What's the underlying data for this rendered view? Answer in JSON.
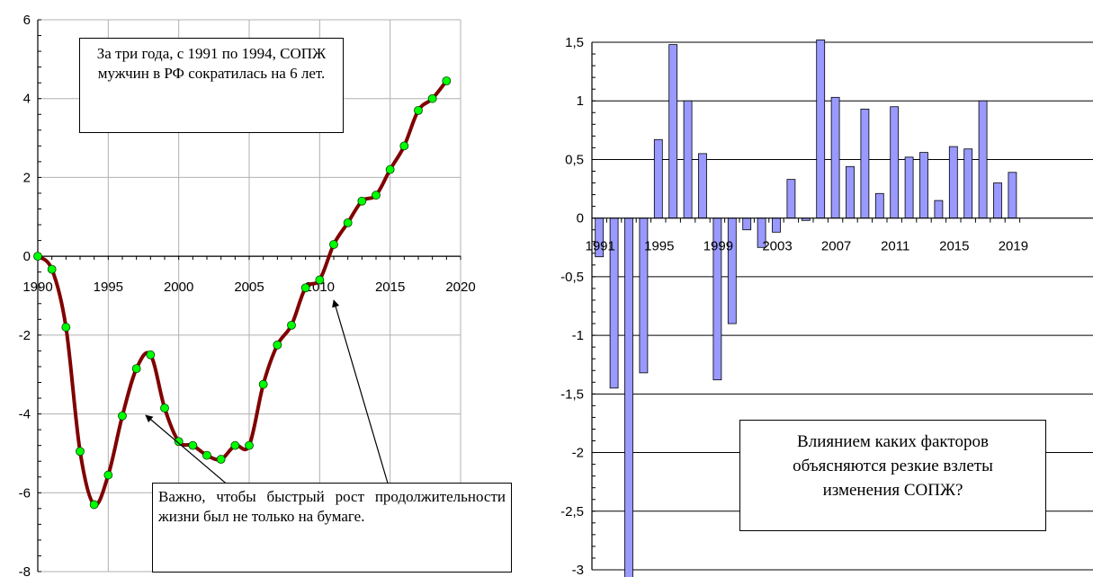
{
  "chart_data": [
    {
      "type": "line",
      "xlim": [
        1990,
        2020
      ],
      "ylim": [
        -8,
        6
      ],
      "x_ticks": [
        1990,
        1995,
        2000,
        2005,
        2010,
        2015,
        2020
      ],
      "x_tick_labels": [
        "1990",
        "1995",
        "2000",
        "2005",
        "2010",
        "2015",
        "2020"
      ],
      "y_ticks": [
        -8,
        -6,
        -4,
        -2,
        0,
        2,
        4,
        6
      ],
      "y_tick_labels": [
        "-8",
        "-6",
        "-4",
        "-2",
        "0",
        "2",
        "4",
        "6"
      ],
      "grid": true,
      "series": [
        {
          "x": [
            1990,
            1991,
            1992,
            1993,
            1994,
            1995,
            1996,
            1997,
            1998,
            1999,
            2000,
            2001,
            2002,
            2003,
            2004,
            2005,
            2006,
            2007,
            2008,
            2009,
            2010,
            2011,
            2012,
            2013,
            2014,
            2015,
            2016,
            2017,
            2018,
            2019
          ],
          "values": [
            0,
            -0.33,
            -1.8,
            -4.95,
            -6.3,
            -5.55,
            -4.05,
            -2.85,
            -2.5,
            -3.85,
            -4.7,
            -4.8,
            -5.05,
            -5.15,
            -4.8,
            -4.8,
            -3.25,
            -2.25,
            -1.75,
            -0.8,
            -0.6,
            0.3,
            0.85,
            1.4,
            1.55,
            2.2,
            2.8,
            3.7,
            4.0,
            4.45
          ],
          "line_color": "#800000",
          "marker_color": "#00ff00"
        }
      ],
      "annotations": [
        {
          "id": "top",
          "text": "За три года, с 1991 по 1994, СОПЖ мужчин в РФ сократилась на 6 лет."
        },
        {
          "id": "bottom",
          "text": "Важно, чтобы быстрый рост продолжительности жизни был не только на бумаге."
        }
      ]
    },
    {
      "type": "bar",
      "ylim": [
        -3,
        1.5
      ],
      "y_ticks": [
        -3,
        -2.5,
        -2,
        -1.5,
        -1,
        -0.5,
        0,
        0.5,
        1,
        1.5
      ],
      "y_tick_labels": [
        "-3",
        "-2,5",
        "-2",
        "-1,5",
        "-1",
        "-0,5",
        "0",
        "0,5",
        "1",
        "1,5"
      ],
      "x_tick_labels": [
        "1991",
        "1995",
        "1999",
        "2003",
        "2007",
        "2011",
        "2015",
        "2019"
      ],
      "grid": true,
      "categories": [
        "1991",
        "1992",
        "1993",
        "1994",
        "1995",
        "1996",
        "1997",
        "1998",
        "1999",
        "2000",
        "2001",
        "2002",
        "2003",
        "2004",
        "2005",
        "2006",
        "2007",
        "2008",
        "2009",
        "2010",
        "2011",
        "2012",
        "2013",
        "2014",
        "2015",
        "2016",
        "2017",
        "2018",
        "2019"
      ],
      "values": [
        -0.33,
        -1.45,
        -3.15,
        -1.32,
        0.67,
        1.48,
        1.0,
        0.55,
        -1.38,
        -0.9,
        -0.1,
        -0.25,
        -0.12,
        0.33,
        -0.02,
        1.52,
        1.03,
        0.44,
        0.93,
        0.21,
        0.95,
        0.52,
        0.56,
        0.15,
        0.61,
        0.59,
        1.0,
        0.3,
        0.39
      ],
      "bar_color": "#9999ff",
      "annotation": "Влиянием каких факторов объясняются резкие взлеты изменения СОПЖ?"
    }
  ]
}
